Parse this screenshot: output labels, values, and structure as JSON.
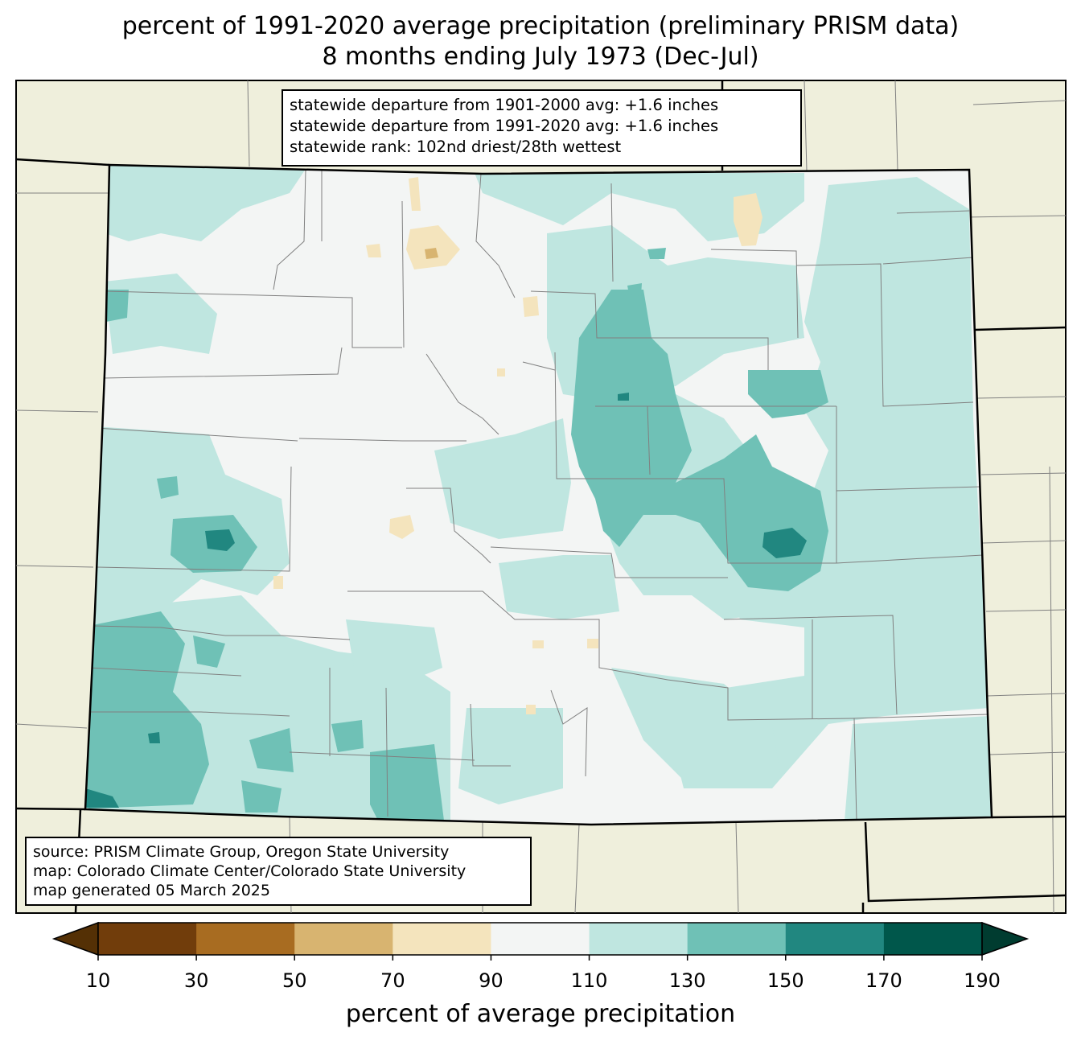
{
  "title": {
    "line1": "percent of 1991-2020 average precipitation (preliminary PRISM data)",
    "line2": "8 months ending July 1973 (Dec-Jul)"
  },
  "stats": {
    "line1": "statewide departure from 1901-2000 avg: +1.6 inches",
    "line2": "statewide departure from 1991-2020 avg: +1.6 inches",
    "line3": "statewide rank: 102nd driest/28th wettest"
  },
  "source": {
    "line1": "source: PRISM Climate Group, Oregon State University",
    "line2": "map: Colorado Climate Center/Colorado State University",
    "line3": "map generated 05 March 2025"
  },
  "colorbar": {
    "label": "percent of average precipitation",
    "ticks": [
      "10",
      "30",
      "50",
      "70",
      "90",
      "110",
      "130",
      "150",
      "170",
      "190"
    ],
    "under_color": "#543005",
    "over_color": "#003c30",
    "bins": [
      {
        "range": "10-30",
        "color": "#713d0b"
      },
      {
        "range": "30-50",
        "color": "#a86c21"
      },
      {
        "range": "50-70",
        "color": "#d8b470"
      },
      {
        "range": "70-90",
        "color": "#f4e4bd"
      },
      {
        "range": "90-110",
        "color": "#f3f5f4"
      },
      {
        "range": "110-130",
        "color": "#bfe6e0"
      },
      {
        "range": "130-150",
        "color": "#6fc1b6"
      },
      {
        "range": "150-170",
        "color": "#218780"
      },
      {
        "range": "170-190",
        "color": "#00574b"
      }
    ]
  },
  "colors": {
    "outside_land": "#efefdc",
    "county_lines": "#808080",
    "state_border": "#000000"
  }
}
